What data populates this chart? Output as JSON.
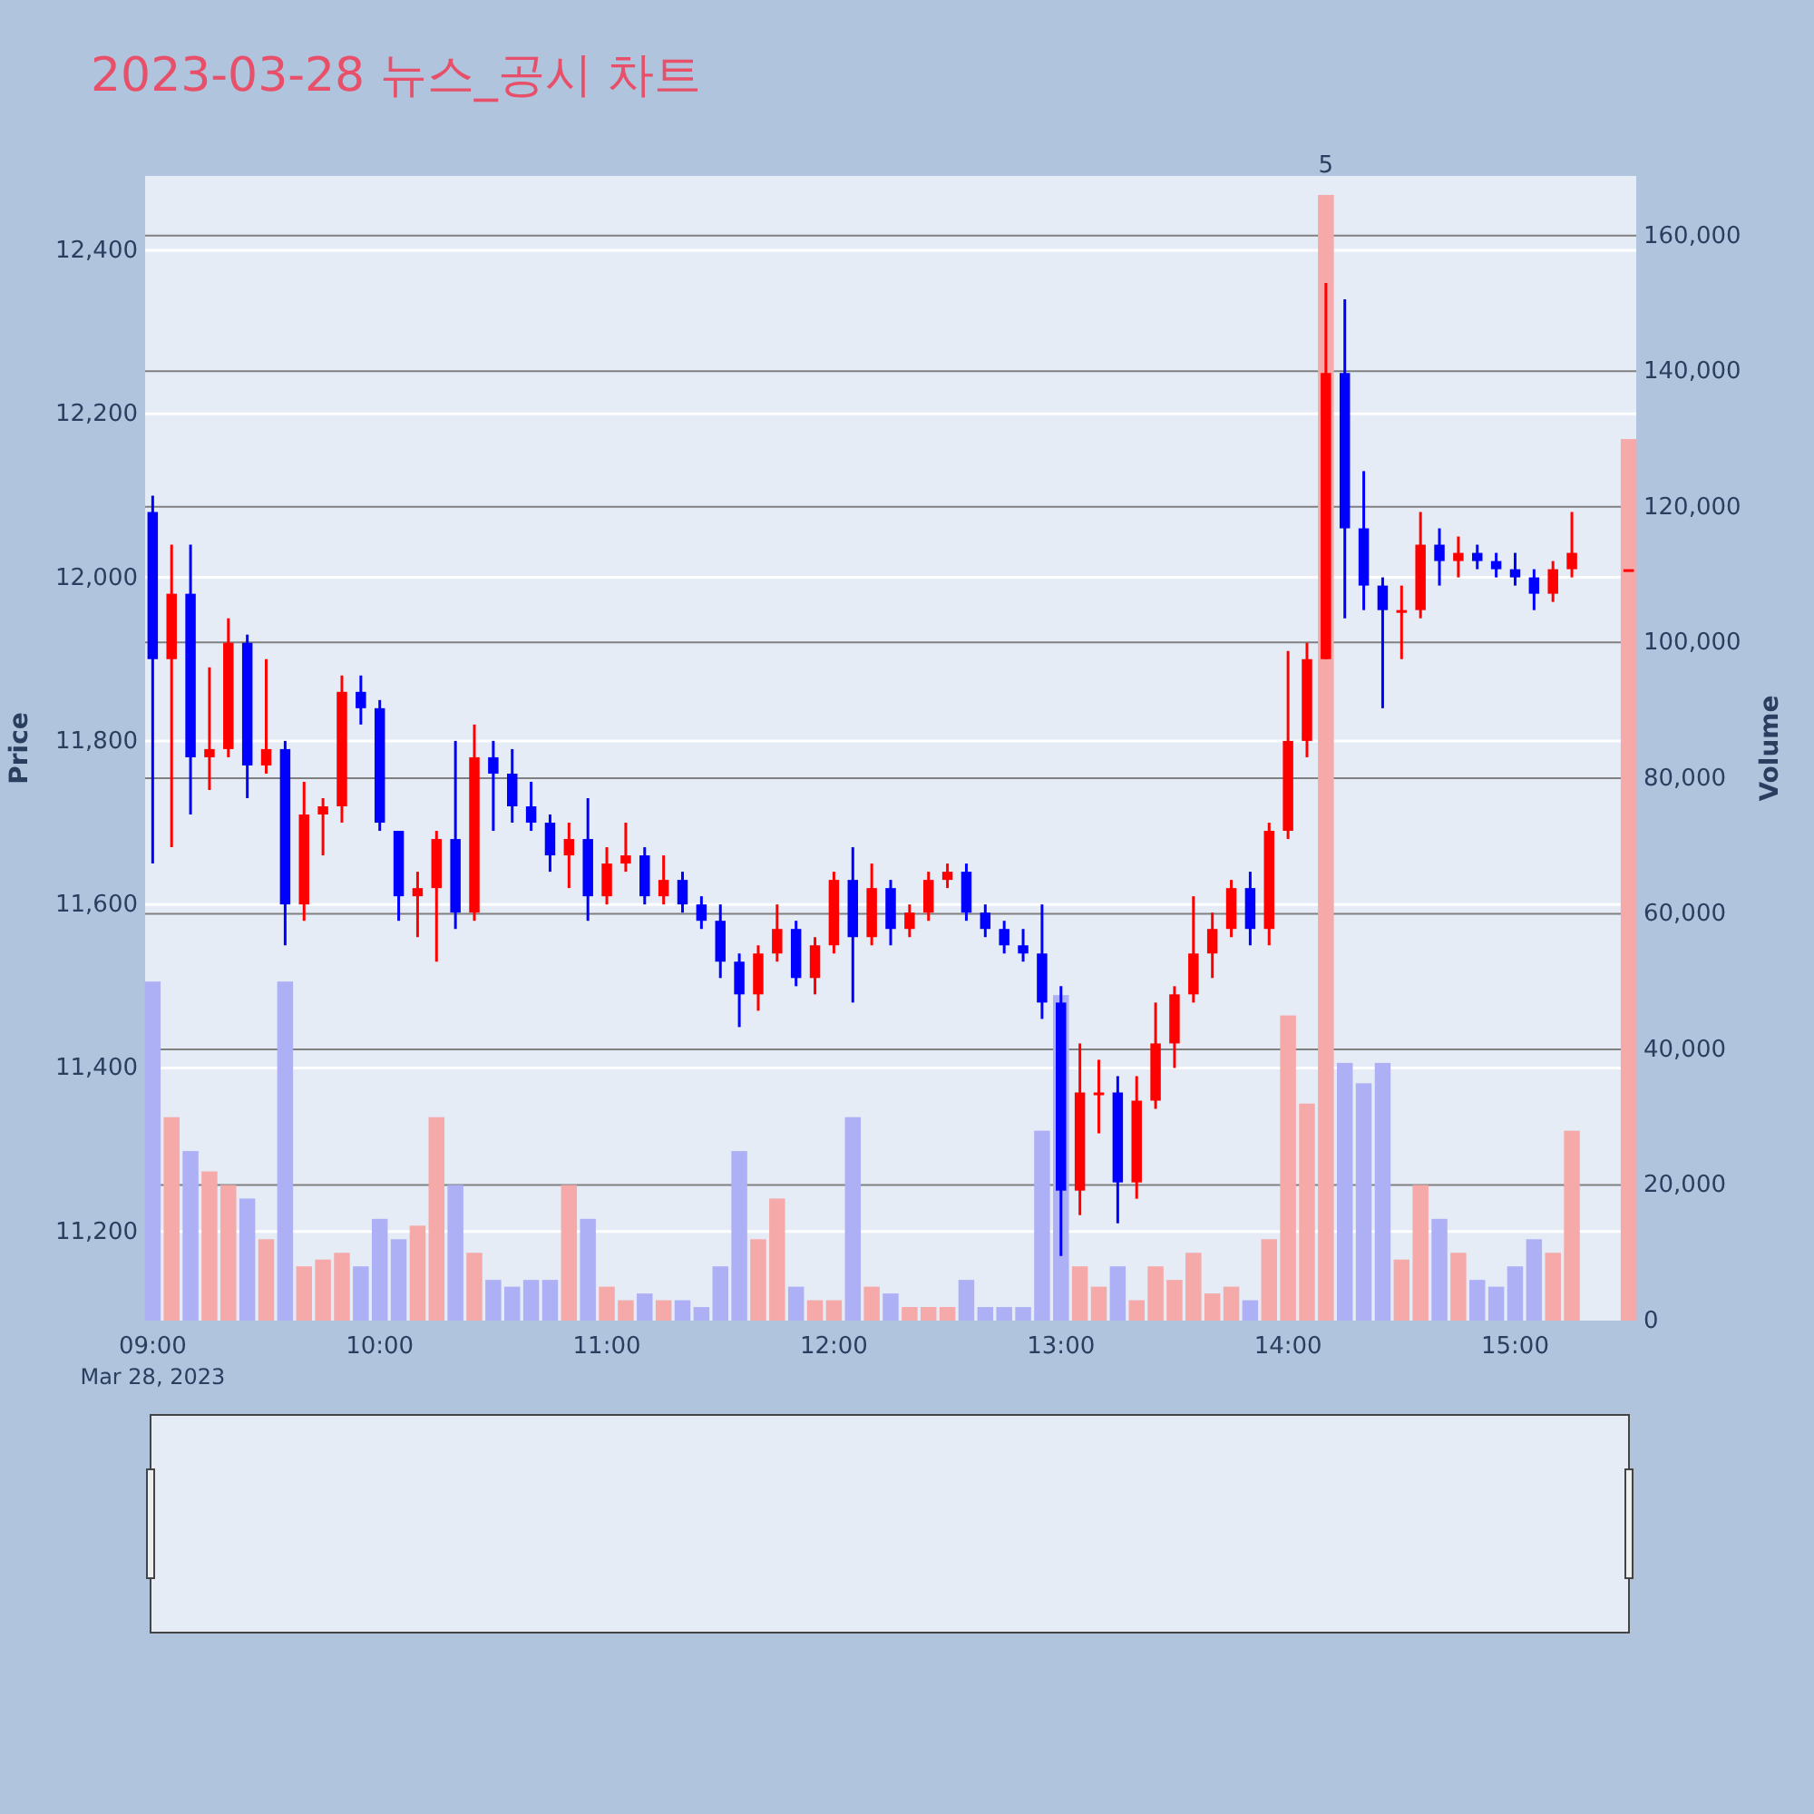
{
  "chart_data": {
    "type": "candlestick",
    "title": "2023-03-28 뉴스_공시 차트",
    "ylabel": "Price",
    "y2label": "Volume",
    "x": [
      "2023-03-28T09:00",
      "2023-03-28T09:05",
      "2023-03-28T09:10",
      "2023-03-28T09:15",
      "2023-03-28T09:20",
      "2023-03-28T09:25",
      "2023-03-28T09:30",
      "2023-03-28T09:35",
      "2023-03-28T09:40",
      "2023-03-28T09:45",
      "2023-03-28T09:50",
      "2023-03-28T09:55",
      "2023-03-28T10:00",
      "2023-03-28T10:05",
      "2023-03-28T10:10",
      "2023-03-28T10:15",
      "2023-03-28T10:20",
      "2023-03-28T10:25",
      "2023-03-28T10:30",
      "2023-03-28T10:35",
      "2023-03-28T10:40",
      "2023-03-28T10:45",
      "2023-03-28T10:50",
      "2023-03-28T10:55",
      "2023-03-28T11:00",
      "2023-03-28T11:05",
      "2023-03-28T11:10",
      "2023-03-28T11:15",
      "2023-03-28T11:20",
      "2023-03-28T11:25",
      "2023-03-28T11:30",
      "2023-03-28T11:35",
      "2023-03-28T11:40",
      "2023-03-28T11:45",
      "2023-03-28T11:50",
      "2023-03-28T11:55",
      "2023-03-28T12:00",
      "2023-03-28T12:05",
      "2023-03-28T12:10",
      "2023-03-28T12:15",
      "2023-03-28T12:20",
      "2023-03-28T12:25",
      "2023-03-28T12:30",
      "2023-03-28T12:35",
      "2023-03-28T12:40",
      "2023-03-28T12:45",
      "2023-03-28T12:50",
      "2023-03-28T12:55",
      "2023-03-28T13:00",
      "2023-03-28T13:05",
      "2023-03-28T13:10",
      "2023-03-28T13:15",
      "2023-03-28T13:20",
      "2023-03-28T13:25",
      "2023-03-28T13:30",
      "2023-03-28T13:35",
      "2023-03-28T13:40",
      "2023-03-28T13:45",
      "2023-03-28T13:50",
      "2023-03-28T13:55",
      "2023-03-28T14:00",
      "2023-03-28T14:05",
      "2023-03-28T14:10",
      "2023-03-28T14:15",
      "2023-03-28T14:20",
      "2023-03-28T14:25",
      "2023-03-28T14:30",
      "2023-03-28T14:35",
      "2023-03-28T14:40",
      "2023-03-28T14:45",
      "2023-03-28T14:50",
      "2023-03-28T14:55",
      "2023-03-28T15:00",
      "2023-03-28T15:05",
      "2023-03-28T15:10",
      "2023-03-28T15:15",
      "2023-03-28T15:30"
    ],
    "series": [
      {
        "type": "candlestick",
        "colors": [
          "#0000ff",
          "#ff0000",
          "#0000ff",
          "#ff0000",
          "#ff0000",
          "#0000ff",
          "#ff0000",
          "#0000ff",
          "#ff0000",
          "#ff0000",
          "#ff0000",
          "#0000ff",
          "#0000ff",
          "#0000ff",
          "#ff0000",
          "#ff0000",
          "#0000ff",
          "#ff0000",
          "#0000ff",
          "#0000ff",
          "#0000ff",
          "#0000ff",
          "#ff0000",
          "#0000ff",
          "#ff0000",
          "#ff0000",
          "#0000ff",
          "#ff0000",
          "#0000ff",
          "#0000ff",
          "#0000ff",
          "#0000ff",
          "#ff0000",
          "#ff0000",
          "#0000ff",
          "#ff0000",
          "#ff0000",
          "#0000ff",
          "#ff0000",
          "#0000ff",
          "#ff0000",
          "#ff0000",
          "#ff0000",
          "#0000ff",
          "#0000ff",
          "#0000ff",
          "#0000ff",
          "#0000ff",
          "#0000ff",
          "#ff0000",
          "#ff0000",
          "#0000ff",
          "#ff0000",
          "#ff0000",
          "#ff0000",
          "#ff0000",
          "#ff0000",
          "#ff0000",
          "#0000ff",
          "#ff0000",
          "#ff0000",
          "#ff0000",
          "#ff0000",
          "#0000ff",
          "#0000ff",
          "#0000ff",
          "#ff0000",
          "#ff0000",
          "#0000ff",
          "#ff0000",
          "#0000ff",
          "#0000ff",
          "#0000ff",
          "#0000ff",
          "#ff0000",
          "#ff0000",
          "#ff0000"
        ],
        "ohlc": [
          [
            12080,
            12100,
            11650,
            11900
          ],
          [
            11900,
            12040,
            11670,
            11980
          ],
          [
            11980,
            12040,
            11710,
            11780
          ],
          [
            11780,
            11890,
            11740,
            11790
          ],
          [
            11790,
            11950,
            11780,
            11920
          ],
          [
            11920,
            11930,
            11730,
            11770
          ],
          [
            11770,
            11900,
            11760,
            11790
          ],
          [
            11790,
            11800,
            11550,
            11600
          ],
          [
            11600,
            11750,
            11580,
            11710
          ],
          [
            11710,
            11730,
            11660,
            11720
          ],
          [
            11720,
            11880,
            11700,
            11860
          ],
          [
            11860,
            11880,
            11820,
            11840
          ],
          [
            11840,
            11850,
            11690,
            11700
          ],
          [
            11690,
            11690,
            11580,
            11610
          ],
          [
            11610,
            11640,
            11560,
            11620
          ],
          [
            11620,
            11690,
            11530,
            11680
          ],
          [
            11680,
            11800,
            11570,
            11590
          ],
          [
            11590,
            11820,
            11580,
            11780
          ],
          [
            11780,
            11800,
            11690,
            11760
          ],
          [
            11760,
            11790,
            11700,
            11720
          ],
          [
            11720,
            11750,
            11690,
            11700
          ],
          [
            11700,
            11710,
            11640,
            11660
          ],
          [
            11660,
            11700,
            11620,
            11680
          ],
          [
            11680,
            11730,
            11580,
            11610
          ],
          [
            11610,
            11670,
            11600,
            11650
          ],
          [
            11650,
            11700,
            11640,
            11660
          ],
          [
            11660,
            11670,
            11600,
            11610
          ],
          [
            11610,
            11660,
            11600,
            11630
          ],
          [
            11630,
            11640,
            11590,
            11600
          ],
          [
            11600,
            11610,
            11570,
            11580
          ],
          [
            11580,
            11600,
            11510,
            11530
          ],
          [
            11530,
            11540,
            11450,
            11490
          ],
          [
            11490,
            11550,
            11470,
            11540
          ],
          [
            11540,
            11600,
            11530,
            11570
          ],
          [
            11570,
            11580,
            11500,
            11510
          ],
          [
            11510,
            11560,
            11490,
            11550
          ],
          [
            11550,
            11640,
            11540,
            11630
          ],
          [
            11630,
            11670,
            11480,
            11560
          ],
          [
            11560,
            11650,
            11550,
            11620
          ],
          [
            11620,
            11630,
            11550,
            11570
          ],
          [
            11570,
            11600,
            11560,
            11590
          ],
          [
            11590,
            11640,
            11580,
            11630
          ],
          [
            11630,
            11650,
            11620,
            11640
          ],
          [
            11640,
            11650,
            11580,
            11590
          ],
          [
            11590,
            11600,
            11560,
            11570
          ],
          [
            11570,
            11580,
            11540,
            11550
          ],
          [
            11550,
            11570,
            11530,
            11540
          ],
          [
            11540,
            11600,
            11460,
            11480
          ],
          [
            11480,
            11500,
            11170,
            11250
          ],
          [
            11250,
            11430,
            11220,
            11370
          ],
          [
            11370,
            11410,
            11320,
            11370
          ],
          [
            11370,
            11390,
            11210,
            11260
          ],
          [
            11260,
            11390,
            11240,
            11360
          ],
          [
            11360,
            11480,
            11350,
            11430
          ],
          [
            11430,
            11500,
            11400,
            11490
          ],
          [
            11490,
            11610,
            11480,
            11540
          ],
          [
            11540,
            11590,
            11510,
            11570
          ],
          [
            11570,
            11630,
            11560,
            11620
          ],
          [
            11620,
            11640,
            11550,
            11570
          ],
          [
            11570,
            11700,
            11550,
            11690
          ],
          [
            11690,
            11910,
            11680,
            11800
          ],
          [
            11800,
            11920,
            11780,
            11900
          ],
          [
            11900,
            12360,
            11900,
            12250
          ],
          [
            12250,
            12340,
            11950,
            12060
          ],
          [
            12060,
            12130,
            11960,
            11990
          ],
          [
            11990,
            12000,
            11840,
            11960
          ],
          [
            11960,
            11990,
            11900,
            11960
          ],
          [
            11960,
            12080,
            11950,
            12040
          ],
          [
            12040,
            12060,
            11990,
            12020
          ],
          [
            12020,
            12050,
            12000,
            12030
          ],
          [
            12030,
            12040,
            12010,
            12020
          ],
          [
            12020,
            12030,
            12000,
            12010
          ],
          [
            12010,
            12030,
            11990,
            12000
          ],
          [
            12000,
            12010,
            11960,
            11980
          ],
          [
            11980,
            12020,
            11970,
            12010
          ],
          [
            12010,
            12080,
            12000,
            12030
          ],
          [
            12010,
            12010,
            12010,
            12010
          ]
        ]
      },
      {
        "type": "bar",
        "axis": "y2",
        "colors": [
          "#aeb0f5",
          "#f5a9a9",
          "#aeb0f5",
          "#f5a9a9",
          "#f5a9a9",
          "#aeb0f5",
          "#f5a9a9",
          "#aeb0f5",
          "#f5a9a9",
          "#f5a9a9",
          "#f5a9a9",
          "#aeb0f5",
          "#aeb0f5",
          "#aeb0f5",
          "#f5a9a9",
          "#f5a9a9",
          "#aeb0f5",
          "#f5a9a9",
          "#aeb0f5",
          "#aeb0f5",
          "#aeb0f5",
          "#aeb0f5",
          "#f5a9a9",
          "#aeb0f5",
          "#f5a9a9",
          "#f5a9a9",
          "#aeb0f5",
          "#f5a9a9",
          "#aeb0f5",
          "#aeb0f5",
          "#aeb0f5",
          "#aeb0f5",
          "#f5a9a9",
          "#f5a9a9",
          "#aeb0f5",
          "#f5a9a9",
          "#f5a9a9",
          "#aeb0f5",
          "#f5a9a9",
          "#aeb0f5",
          "#f5a9a9",
          "#f5a9a9",
          "#f5a9a9",
          "#aeb0f5",
          "#aeb0f5",
          "#aeb0f5",
          "#aeb0f5",
          "#aeb0f5",
          "#aeb0f5",
          "#f5a9a9",
          "#f5a9a9",
          "#aeb0f5",
          "#f5a9a9",
          "#f5a9a9",
          "#f5a9a9",
          "#f5a9a9",
          "#f5a9a9",
          "#f5a9a9",
          "#aeb0f5",
          "#f5a9a9",
          "#f5a9a9",
          "#f5a9a9",
          "#f5a9a9",
          "#aeb0f5",
          "#aeb0f5",
          "#aeb0f5",
          "#f5a9a9",
          "#f5a9a9",
          "#aeb0f5",
          "#f5a9a9",
          "#aeb0f5",
          "#aeb0f5",
          "#aeb0f5",
          "#aeb0f5",
          "#f5a9a9",
          "#f5a9a9",
          "#f5a9a9"
        ],
        "values": [
          50000,
          30000,
          25000,
          22000,
          20000,
          18000,
          12000,
          50000,
          8000,
          9000,
          10000,
          8000,
          15000,
          12000,
          14000,
          30000,
          20000,
          10000,
          6000,
          5000,
          6000,
          6000,
          20000,
          15000,
          5000,
          3000,
          4000,
          3000,
          3000,
          2000,
          8000,
          25000,
          12000,
          18000,
          5000,
          3000,
          3000,
          30000,
          5000,
          4000,
          2000,
          2000,
          2000,
          6000,
          2000,
          2000,
          2000,
          28000,
          48000,
          8000,
          5000,
          8000,
          3000,
          8000,
          6000,
          10000,
          4000,
          5000,
          3000,
          12000,
          45000,
          32000,
          166000,
          38000,
          35000,
          38000,
          9000,
          20000,
          15000,
          10000,
          6000,
          5000,
          8000,
          12000,
          10000,
          28000,
          130000
        ]
      }
    ],
    "xlim": [
      "2023-03-28T08:58",
      "2023-03-28T15:32"
    ],
    "xticks": [
      {
        "value": "2023-03-28T09:00",
        "label": "09:00"
      },
      {
        "value": "2023-03-28T10:00",
        "label": "10:00"
      },
      {
        "value": "2023-03-28T11:00",
        "label": "11:00"
      },
      {
        "value": "2023-03-28T12:00",
        "label": "12:00"
      },
      {
        "value": "2023-03-28T13:00",
        "label": "13:00"
      },
      {
        "value": "2023-03-28T14:00",
        "label": "14:00"
      },
      {
        "value": "2023-03-28T15:00",
        "label": "15:00"
      }
    ],
    "ylim": [
      11091,
      12491
    ],
    "yticks": [
      {
        "value": 11200,
        "label": "11,200"
      },
      {
        "value": 11400,
        "label": "11,400"
      },
      {
        "value": 11600,
        "label": "11,600"
      },
      {
        "value": 11800,
        "label": "11,800"
      },
      {
        "value": 12000,
        "label": "12,000"
      },
      {
        "value": 12200,
        "label": "12,200"
      },
      {
        "value": 12400,
        "label": "12,400"
      }
    ],
    "y2lim": [
      0,
      168800
    ],
    "y2ticks": [
      0,
      {
        "value": 20000,
        "label": "20,000"
      },
      {
        "value": 40000,
        "label": "40,000"
      },
      {
        "value": 60000,
        "label": "60,000"
      },
      {
        "value": 80000,
        "label": "80,000"
      },
      {
        "value": 100000,
        "label": "100,000"
      },
      {
        "value": 120000,
        "label": "120,000"
      },
      {
        "value": 140000,
        "label": "140,000"
      },
      {
        "value": 160000,
        "label": "160,000"
      }
    ],
    "grid": true,
    "annotations": [
      "5",
      "Mar 28, 2023"
    ]
  }
}
